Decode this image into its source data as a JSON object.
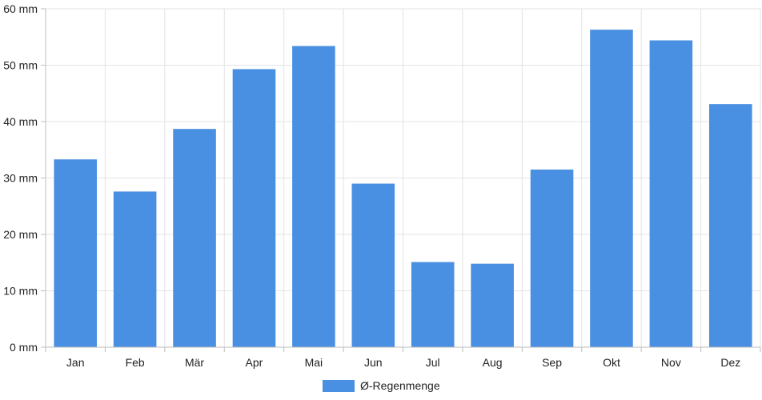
{
  "chart_data": {
    "type": "bar",
    "categories": [
      "Jan",
      "Feb",
      "Mär",
      "Apr",
      "Mai",
      "Jun",
      "Jul",
      "Aug",
      "Sep",
      "Okt",
      "Nov",
      "Dez"
    ],
    "series": [
      {
        "name": "Ø-Regenmenge",
        "color": "#4a90e2",
        "values": [
          33.3,
          27.6,
          38.7,
          49.3,
          53.4,
          29.0,
          15.1,
          14.8,
          31.5,
          56.3,
          54.4,
          43.1
        ]
      }
    ],
    "title": "",
    "xlabel": "",
    "ylabel": "",
    "ylim": [
      0,
      60
    ],
    "yticks": [
      0,
      10,
      20,
      30,
      40,
      50,
      60
    ],
    "ytick_unit": "mm",
    "ytick_labels": [
      "0 mm",
      "10 mm",
      "20 mm",
      "30 mm",
      "40 mm",
      "50 mm",
      "60 mm"
    ],
    "grid": true,
    "legend_position": "bottom-center"
  }
}
